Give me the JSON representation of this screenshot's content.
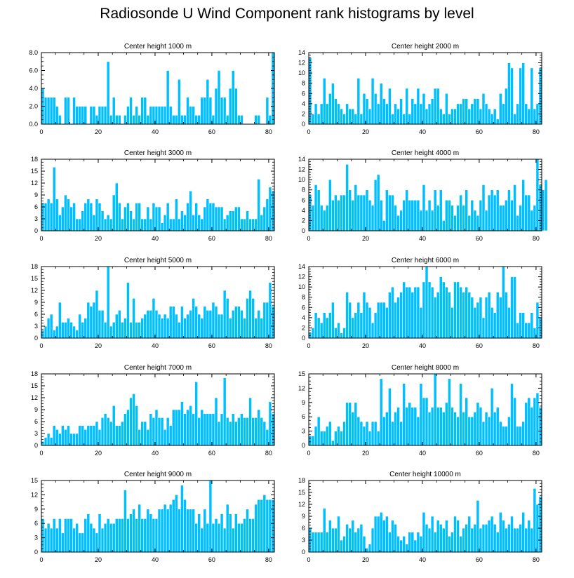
{
  "title": "Radiosonde U Wind Component rank histograms by level",
  "colors": {
    "bar": "#00bfff",
    "bar_edge": "#ffffff",
    "frame": "#000000"
  },
  "chart_data": [
    {
      "type": "bar",
      "title": "Center height 1000 m",
      "ylim": [
        0,
        8
      ],
      "yticks": [
        "0.0",
        "2.0",
        "4.0",
        "6.0",
        "8.0"
      ],
      "xlim": [
        0,
        82
      ],
      "xticks": [
        "0",
        "20",
        "40",
        "60",
        "80"
      ],
      "values": [
        4,
        3,
        3,
        3,
        3,
        2,
        1,
        0,
        3,
        3,
        0,
        3,
        2,
        2,
        2,
        2,
        0,
        2,
        2,
        1,
        2,
        2,
        2,
        7,
        1,
        3,
        1,
        1,
        0,
        1,
        2,
        3,
        1,
        2,
        1,
        3,
        3,
        1,
        2,
        2,
        2,
        2,
        2,
        2,
        6,
        2,
        1,
        1,
        5,
        1,
        1,
        3,
        2,
        2,
        1,
        1,
        3,
        3,
        5,
        3,
        1,
        4,
        6,
        3,
        3,
        1,
        4,
        6,
        4,
        1,
        1,
        0,
        0,
        0,
        0,
        1,
        1,
        0,
        0,
        3,
        1,
        8
      ]
    },
    {
      "type": "bar",
      "title": "Center height 2000 m",
      "ylim": [
        0,
        14
      ],
      "yticks": [
        "0",
        "2",
        "4",
        "6",
        "8",
        "10",
        "12",
        "14"
      ],
      "xlim": [
        0,
        82
      ],
      "xticks": [
        "0",
        "20",
        "40",
        "60",
        "80"
      ],
      "values": [
        13,
        2,
        4,
        2,
        4,
        9,
        4,
        6,
        8,
        5,
        4,
        3,
        2,
        4,
        3,
        3,
        2,
        9,
        2,
        6,
        5,
        3,
        9,
        6,
        4,
        8,
        5,
        4,
        7,
        2,
        4,
        3,
        5,
        2,
        7,
        2,
        5,
        4,
        7,
        4,
        6,
        3,
        4,
        5,
        7,
        7,
        3,
        2,
        6,
        2,
        3,
        3,
        4,
        4,
        5,
        5,
        3,
        4,
        5,
        5,
        3,
        6,
        4,
        3,
        2,
        3,
        1,
        6,
        4,
        7,
        12,
        11,
        2,
        4,
        11,
        12,
        4,
        3,
        11,
        3,
        4,
        11
      ]
    },
    {
      "type": "bar",
      "title": "Center height 3000 m",
      "ylim": [
        0,
        18
      ],
      "yticks": [
        "0",
        "3",
        "6",
        "9",
        "12",
        "15",
        "18"
      ],
      "xlim": [
        0,
        82
      ],
      "xticks": [
        "0",
        "20",
        "40",
        "60",
        "80"
      ],
      "values": [
        7,
        7,
        8,
        7,
        16,
        8,
        4,
        6,
        9,
        8,
        6,
        7,
        3,
        3,
        5,
        7,
        8,
        7,
        4,
        8,
        7,
        5,
        3,
        4,
        3,
        9,
        12,
        7,
        3,
        6,
        7,
        5,
        3,
        7,
        7,
        3,
        3,
        6,
        3,
        7,
        6,
        6,
        2,
        4,
        7,
        3,
        3,
        8,
        3,
        5,
        4,
        7,
        10,
        4,
        7,
        4,
        3,
        6,
        8,
        7,
        7,
        6,
        6,
        6,
        3,
        4,
        5,
        5,
        6,
        6,
        3,
        3,
        5,
        3,
        3,
        3,
        13,
        4,
        6,
        8,
        11,
        10
      ]
    },
    {
      "type": "bar",
      "title": "Center height 4000 m",
      "ylim": [
        0,
        14
      ],
      "yticks": [
        "0",
        "2",
        "4",
        "6",
        "8",
        "10",
        "12",
        "14"
      ],
      "xlim": [
        0,
        82
      ],
      "xticks": [
        "0",
        "20",
        "40",
        "60",
        "80"
      ],
      "values": [
        7,
        5,
        9,
        8,
        5,
        4,
        5,
        10,
        6,
        7,
        6,
        7,
        7,
        13,
        8,
        6,
        9,
        7,
        7,
        7,
        8,
        6,
        5,
        10,
        11,
        6,
        2,
        8,
        7,
        7,
        5,
        3,
        4,
        6,
        8,
        6,
        6,
        6,
        6,
        4,
        9,
        4,
        6,
        4,
        8,
        5,
        8,
        2,
        6,
        6,
        5,
        3,
        5,
        7,
        5,
        8,
        3,
        6,
        4,
        3,
        6,
        9,
        4,
        7,
        8,
        7,
        8,
        5,
        5,
        6,
        8,
        6,
        9,
        3,
        5,
        10,
        7,
        7,
        4,
        5,
        14,
        9,
        8,
        10
      ]
    },
    {
      "type": "bar",
      "title": "Center height 5000 m",
      "ylim": [
        0,
        18
      ],
      "yticks": [
        "0",
        "3",
        "6",
        "9",
        "12",
        "15",
        "18"
      ],
      "xlim": [
        0,
        82
      ],
      "xticks": [
        "0",
        "20",
        "40",
        "60",
        "80"
      ],
      "values": [
        2,
        3,
        5,
        6,
        2,
        3,
        9,
        4,
        4,
        5,
        4,
        3,
        2,
        6,
        4,
        5,
        9,
        8,
        9,
        12,
        7,
        7,
        4,
        18,
        3,
        4,
        6,
        7,
        4,
        5,
        14,
        4,
        10,
        4,
        4,
        5,
        6,
        7,
        7,
        10,
        7,
        6,
        5,
        6,
        5,
        8,
        8,
        6,
        4,
        8,
        5,
        6,
        7,
        10,
        8,
        6,
        5,
        8,
        7,
        7,
        9,
        8,
        6,
        6,
        12,
        10,
        5,
        7,
        8,
        8,
        7,
        5,
        10,
        12,
        10,
        5,
        7,
        5,
        9,
        9,
        14,
        8
      ]
    },
    {
      "type": "bar",
      "title": "Center height 6000 m",
      "ylim": [
        0,
        14
      ],
      "yticks": [
        "0",
        "2",
        "4",
        "6",
        "8",
        "10",
        "12",
        "14"
      ],
      "xlim": [
        0,
        82
      ],
      "xticks": [
        "0",
        "20",
        "40",
        "60",
        "80"
      ],
      "values": [
        1,
        2,
        5,
        4,
        3,
        5,
        4,
        5,
        7,
        2,
        3,
        1,
        2,
        9,
        7,
        4,
        5,
        7,
        5,
        9,
        7,
        6,
        3,
        5,
        7,
        7,
        7,
        6,
        9,
        10,
        7,
        8,
        9,
        11,
        10,
        10,
        9,
        10,
        10,
        6,
        11,
        14,
        11,
        10,
        8,
        9,
        12,
        11,
        10,
        9,
        6,
        11,
        11,
        10,
        9,
        10,
        9,
        8,
        6,
        7,
        8,
        4,
        8,
        9,
        6,
        5,
        9,
        8,
        14,
        9,
        6,
        12,
        12,
        3,
        5,
        5,
        3,
        3,
        5,
        2,
        7,
        4
      ]
    },
    {
      "type": "bar",
      "title": "Center height 7000 m",
      "ylim": [
        0,
        18
      ],
      "yticks": [
        "0",
        "3",
        "6",
        "9",
        "12",
        "15",
        "18"
      ],
      "xlim": [
        0,
        82
      ],
      "xticks": [
        "0",
        "20",
        "40",
        "60",
        "80"
      ],
      "values": [
        1,
        2,
        3,
        2,
        5,
        4,
        3,
        5,
        4,
        5,
        3,
        3,
        3,
        5,
        5,
        4,
        5,
        5,
        5,
        6,
        4,
        7,
        8,
        7,
        6,
        10,
        5,
        5,
        6,
        8,
        9,
        12,
        13,
        10,
        4,
        6,
        6,
        4,
        8,
        7,
        9,
        7,
        7,
        4,
        7,
        5,
        9,
        9,
        9,
        11,
        8,
        9,
        10,
        8,
        16,
        7,
        9,
        8,
        8,
        8,
        8,
        12,
        6,
        8,
        17,
        7,
        6,
        8,
        6,
        7,
        8,
        7,
        7,
        12,
        7,
        7,
        9,
        7,
        6,
        4,
        11,
        8
      ]
    },
    {
      "type": "bar",
      "title": "Center height 8000 m",
      "ylim": [
        0,
        15
      ],
      "yticks": [
        "0",
        "3",
        "6",
        "9",
        "12",
        "15"
      ],
      "xlim": [
        0,
        82
      ],
      "xticks": [
        "0",
        "20",
        "40",
        "60",
        "80"
      ],
      "values": [
        2,
        2,
        4,
        6,
        3,
        3,
        4,
        5,
        1,
        3,
        4,
        3,
        5,
        9,
        9,
        7,
        9,
        6,
        5,
        4,
        5,
        3,
        5,
        5,
        3,
        14,
        6,
        7,
        12,
        5,
        7,
        8,
        5,
        13,
        8,
        9,
        8,
        8,
        6,
        13,
        10,
        10,
        7,
        8,
        15,
        8,
        8,
        7,
        9,
        14,
        8,
        7,
        6,
        13,
        7,
        10,
        6,
        6,
        7,
        9,
        8,
        5,
        7,
        6,
        12,
        7,
        8,
        5,
        4,
        4,
        6,
        13,
        10,
        4,
        4,
        5,
        9,
        10,
        8,
        10,
        11,
        8
      ]
    },
    {
      "type": "bar",
      "title": "Center height 9000 m",
      "ylim": [
        0,
        15
      ],
      "yticks": [
        "0",
        "3",
        "6",
        "9",
        "12",
        "15"
      ],
      "xlim": [
        0,
        82
      ],
      "xticks": [
        "0",
        "20",
        "40",
        "60",
        "80"
      ],
      "values": [
        7,
        5,
        6,
        5,
        7,
        5,
        7,
        4,
        7,
        7,
        7,
        5,
        6,
        4,
        4,
        7,
        8,
        6,
        5,
        4,
        8,
        5,
        6,
        7,
        6,
        6,
        7,
        7,
        7,
        13,
        7,
        8,
        9,
        7,
        10,
        7,
        7,
        9,
        8,
        7,
        7,
        9,
        9,
        10,
        9,
        10,
        11,
        12,
        9,
        14,
        11,
        9,
        9,
        9,
        6,
        8,
        5,
        9,
        6,
        15,
        6,
        7,
        6,
        8,
        5,
        10,
        8,
        5,
        8,
        6,
        6,
        7,
        9,
        7,
        7,
        10,
        11,
        11,
        12,
        11,
        11,
        11
      ]
    },
    {
      "type": "bar",
      "title": "Center height 10000 m",
      "ylim": [
        0,
        18
      ],
      "yticks": [
        "0",
        "3",
        "6",
        "9",
        "12",
        "15",
        "18"
      ],
      "xlim": [
        0,
        82
      ],
      "xticks": [
        "0",
        "20",
        "40",
        "60",
        "80"
      ],
      "values": [
        6,
        5,
        5,
        5,
        5,
        11,
        5,
        8,
        6,
        6,
        9,
        3,
        4,
        7,
        6,
        8,
        5,
        6,
        7,
        4,
        1,
        2,
        6,
        9,
        9,
        10,
        8,
        9,
        5,
        8,
        7,
        4,
        3,
        4,
        2,
        5,
        5,
        3,
        5,
        4,
        10,
        7,
        6,
        9,
        5,
        8,
        7,
        6,
        8,
        4,
        5,
        9,
        8,
        4,
        6,
        7,
        9,
        6,
        7,
        13,
        6,
        7,
        7,
        8,
        9,
        7,
        5,
        10,
        8,
        6,
        7,
        9,
        6,
        6,
        7,
        10,
        6,
        8,
        6,
        16,
        12,
        14
      ]
    }
  ]
}
